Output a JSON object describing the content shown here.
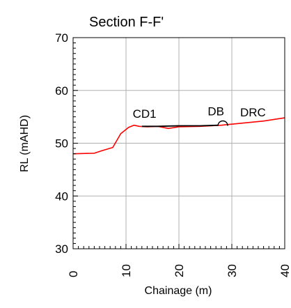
{
  "chart_data": {
    "type": "line",
    "title": "Section F-F'",
    "xlabel": "Chainage (m)",
    "ylabel": "RL (mAHD)",
    "xlim": [
      0,
      40
    ],
    "ylim": [
      30,
      70
    ],
    "xticks": [
      0,
      10,
      20,
      30,
      40
    ],
    "yticks": [
      30,
      40,
      50,
      60,
      70
    ],
    "grid": true,
    "series": [
      {
        "color": "#ff0000",
        "x": [
          0,
          4,
          5.5,
          7.5,
          9,
          10.5,
          11.5,
          12.5,
          14,
          16,
          18,
          20,
          24,
          28,
          32,
          36,
          40
        ],
        "y": [
          48.0,
          48.1,
          48.6,
          49.2,
          51.8,
          53.0,
          53.4,
          53.2,
          53.1,
          53.2,
          52.8,
          53.1,
          53.2,
          53.4,
          53.8,
          54.2,
          54.8
        ]
      },
      {
        "color": "#000000",
        "x": [
          13,
          16,
          20,
          24,
          27.5
        ],
        "y": [
          53.2,
          53.2,
          53.3,
          53.3,
          53.4
        ]
      }
    ],
    "annotations": [
      {
        "text": "CD1",
        "x": 13.5,
        "y": 54.8
      },
      {
        "text": "DB",
        "x": 27,
        "y": 55.3
      },
      {
        "text": "DRC",
        "x": 34,
        "y": 55.1
      }
    ]
  }
}
